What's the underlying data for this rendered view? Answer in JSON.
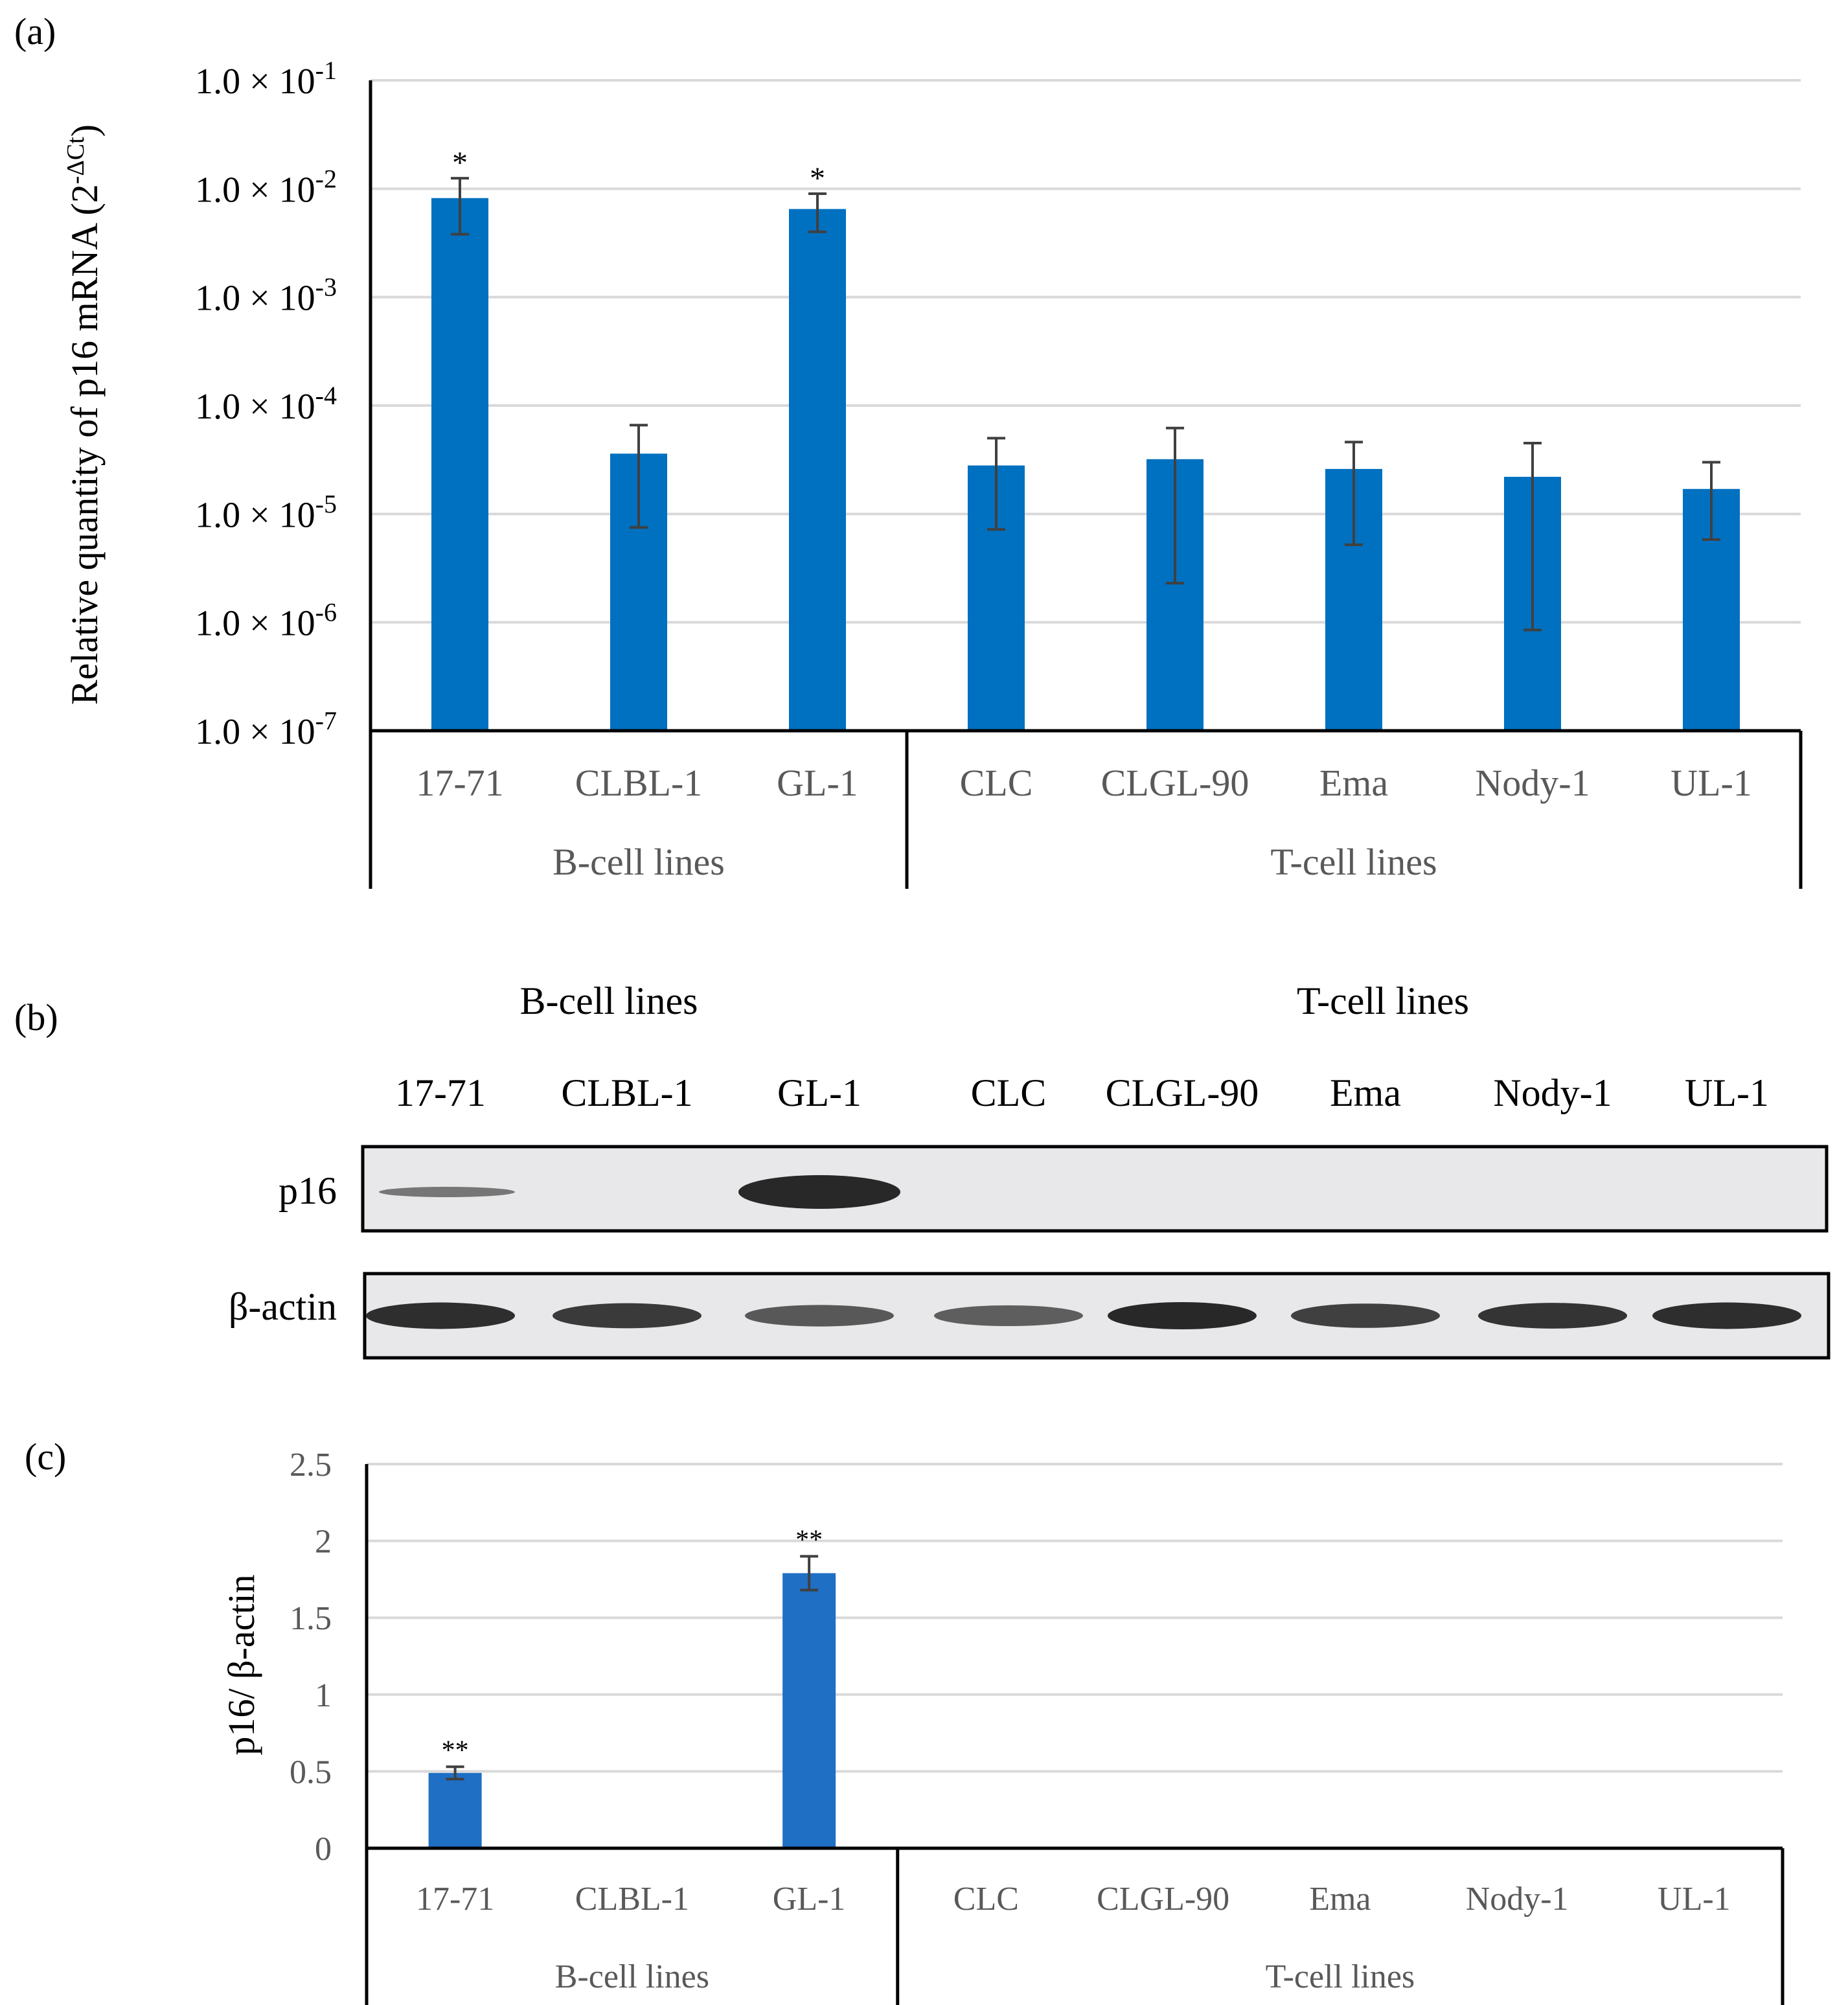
{
  "colors": {
    "bar": "#0070C0",
    "bar_c": "#1F6FC5",
    "grid": "#D9D9D9",
    "axis": "#000000",
    "label": "#595959",
    "err": "#404040"
  },
  "chart_data": [
    {
      "panel": "(a)",
      "type": "bar",
      "scale": "log",
      "ylabel": "Relative quantity of p16 mRNA (2-ΔCt)",
      "ytick_labels": [
        "1.0 × 10-1",
        "1.0 × 10-2",
        "1.0 × 10-3",
        "1.0 × 10-4",
        "1.0 × 10-5",
        "1.0 × 10-6",
        "1.0 × 10-7"
      ],
      "ytick_mantissa": "1.0 × 10",
      "ytick_exponents": [
        "-1",
        "-2",
        "-3",
        "-4",
        "-5",
        "-6",
        "-7"
      ],
      "ylim": [
        1e-07,
        0.1
      ],
      "categories": [
        "17-71",
        "CLBL-1",
        "GL-1",
        "CLC",
        "CLGL-90",
        "Ema",
        "Nody-1",
        "UL-1"
      ],
      "groups": [
        {
          "name": "B-cell lines",
          "count": 3
        },
        {
          "name": "T-cell lines",
          "count": 5
        }
      ],
      "values": [
        0.0082,
        3.6e-05,
        0.0065,
        2.8e-05,
        3.2e-05,
        2.6e-05,
        2.2e-05,
        1.7e-05
      ],
      "err_low": [
        0.0038,
        7.5e-06,
        0.004,
        7.2e-06,
        2.3e-06,
        5.2e-06,
        8.5e-07,
        5.8e-06
      ],
      "err_high": [
        0.0125,
        6.6e-05,
        0.009,
        5e-05,
        6.2e-05,
        4.6e-05,
        4.5e-05,
        3e-05
      ],
      "significance": [
        "*",
        "",
        "*",
        "",
        "",
        "",
        "",
        ""
      ]
    },
    {
      "panel": "(c)",
      "type": "bar",
      "ylabel": "p16/ β-actin",
      "ylim": [
        0,
        2.5
      ],
      "yticks": [
        0,
        0.5,
        1,
        1.5,
        2,
        2.5
      ],
      "ytick_labels": [
        "0",
        "0.5",
        "1",
        "1.5",
        "2",
        "2.5"
      ],
      "categories": [
        "17-71",
        "CLBL-1",
        "GL-1",
        "CLC",
        "CLGL-90",
        "Ema",
        "Nody-1",
        "UL-1"
      ],
      "groups": [
        {
          "name": "B-cell lines",
          "count": 3
        },
        {
          "name": "T-cell lines",
          "count": 5
        }
      ],
      "values": [
        0.49,
        0,
        1.79,
        0,
        0,
        0,
        0,
        0
      ],
      "err": [
        0.04,
        0,
        0.11,
        0,
        0,
        0,
        0,
        0
      ],
      "significance": [
        "**",
        "",
        "**",
        "",
        "",
        "",
        "",
        ""
      ]
    }
  ],
  "western_blot": {
    "panel": "(b)",
    "group_labels": [
      "B-cell lines",
      "T-cell lines"
    ],
    "lanes": [
      "17-71",
      "CLBL-1",
      "GL-1",
      "CLC",
      "CLGL-90",
      "Ema",
      "Nody-1",
      "UL-1"
    ],
    "rows": [
      {
        "label": "p16",
        "intensity": [
          0.35,
          0,
          1.0,
          0,
          0,
          0,
          0,
          0
        ]
      },
      {
        "label": "β-actin",
        "intensity": [
          0.95,
          0.85,
          0.6,
          0.55,
          1.0,
          0.8,
          0.9,
          0.95
        ]
      }
    ]
  }
}
